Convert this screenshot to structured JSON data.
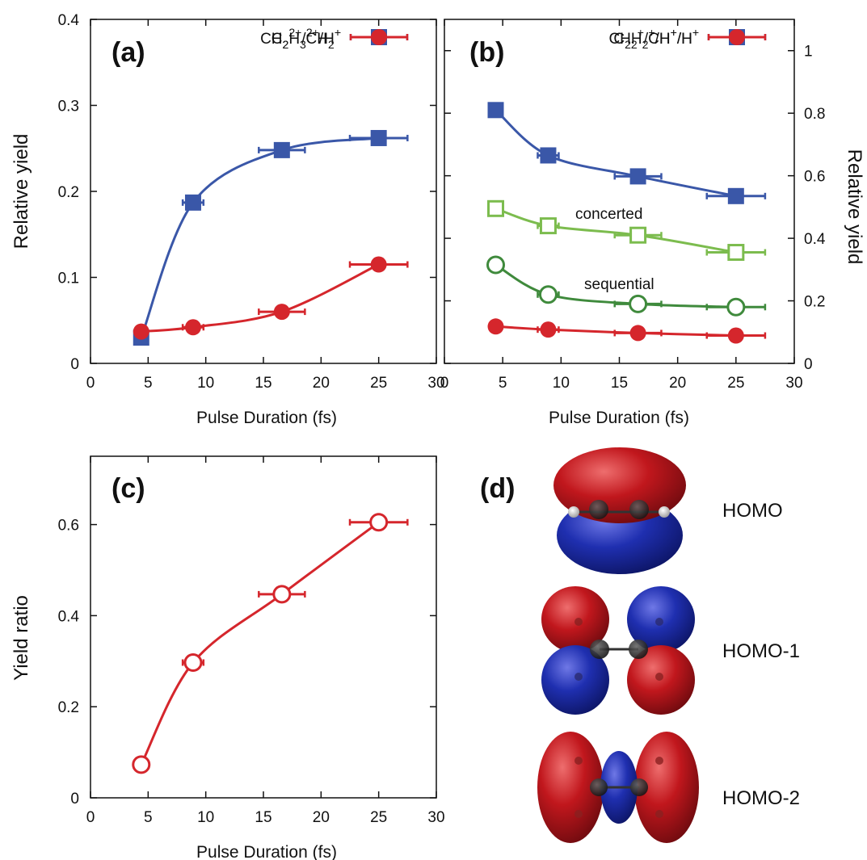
{
  "colors": {
    "blue": "#3a57a8",
    "red": "#d5262c",
    "light_green": "#7cbc4e",
    "dark_green": "#3f8a3c",
    "orbital_red": "#b3161c",
    "orbital_blue": "#1f2ea8"
  },
  "chart_data": [
    {
      "type": "line",
      "panel_label": "(a)",
      "xlabel": "Pulse Duration (fs)",
      "ylabel": "Relative yield",
      "xlim": [
        0,
        30
      ],
      "ylim": [
        0,
        0.4
      ],
      "x_ticks": [
        "0",
        "5",
        "10",
        "15",
        "20",
        "25",
        "30"
      ],
      "y_ticks": [
        "0",
        "0.1",
        "0.2",
        "0.3",
        "0.4"
      ],
      "legend_position": "top-right",
      "series": [
        {
          "name": "C2H3 2+/H+",
          "legend": {
            "a": "C",
            "a_sub": "2",
            "b": "H",
            "b_sub": "3",
            "b_sup": "2+",
            "c": "/H",
            "c_sup": "+"
          },
          "marker": "filled-square",
          "color": "#3a57a8",
          "x": [
            4.4,
            8.9,
            16.6,
            25.0
          ],
          "y": [
            0.03,
            0.187,
            0.248,
            0.262
          ],
          "xerr": [
            0.3,
            0.9,
            2.0,
            2.5
          ]
        },
        {
          "name": "CH2 2+/CH2 +",
          "legend": {
            "a": "CH",
            "a_sub": "2",
            "a_sup": "2+",
            "b": "/CH",
            "b_sub": "2",
            "b_sup": "+"
          },
          "marker": "filled-circle",
          "color": "#d5262c",
          "x": [
            4.4,
            8.9,
            16.6,
            25.0
          ],
          "y": [
            0.037,
            0.042,
            0.06,
            0.115
          ],
          "xerr": [
            0.3,
            0.9,
            2.0,
            2.5
          ]
        }
      ]
    },
    {
      "type": "line",
      "panel_label": "(b)",
      "xlabel": "Pulse Duration (fs)",
      "ylabel": "Relative yield",
      "xlim": [
        0,
        30
      ],
      "ylim": [
        0,
        1.1
      ],
      "x_ticks": [
        "0",
        "5",
        "10",
        "15",
        "20",
        "25",
        "30"
      ],
      "y_ticks": [
        "0",
        "0.2",
        "0.4",
        "0.6",
        "0.8",
        "1"
      ],
      "y_axis_side": "right",
      "legend_position": "top-right",
      "series": [
        {
          "name": "C2H2+/H+/H+",
          "legend": {
            "a": "C",
            "a_sub": "2",
            "b": "H",
            "b_sub": "2",
            "b_sup": "+",
            "c": "/H",
            "c_sup": "+",
            "d": "/H",
            "d_sup": "+"
          },
          "marker": "filled-square",
          "color": "#3a57a8",
          "x": [
            4.4,
            8.9,
            16.6,
            25.0
          ],
          "y": [
            0.81,
            0.665,
            0.598,
            0.535
          ],
          "xerr": [
            0.3,
            0.9,
            2.0,
            2.5
          ]
        },
        {
          "name": "concerted",
          "label": "concerted",
          "marker": "open-square",
          "color": "#7cbc4e",
          "x": [
            4.4,
            8.9,
            16.6,
            25.0
          ],
          "y": [
            0.495,
            0.44,
            0.41,
            0.355
          ],
          "xerr": [
            0.3,
            0.9,
            2.0,
            2.5
          ]
        },
        {
          "name": "sequential",
          "label": "sequential",
          "marker": "open-circle",
          "color": "#3f8a3c",
          "x": [
            4.4,
            8.9,
            16.6,
            25.0
          ],
          "y": [
            0.315,
            0.22,
            0.19,
            0.18
          ],
          "xerr": [
            0.3,
            0.9,
            2.0,
            2.5
          ]
        },
        {
          "name": "CH2+/CH+/H+",
          "legend": {
            "a": "CH",
            "a_sub": "2",
            "a_sup": "+",
            "b": "/CH",
            "b_sup": "+",
            "c": "/H",
            "c_sup": "+"
          },
          "marker": "filled-circle",
          "color": "#d5262c",
          "x": [
            4.4,
            8.9,
            16.6,
            25.0
          ],
          "y": [
            0.118,
            0.108,
            0.097,
            0.089
          ],
          "xerr": [
            0.3,
            0.9,
            2.0,
            2.5
          ]
        }
      ]
    },
    {
      "type": "line",
      "panel_label": "(c)",
      "xlabel": "Pulse Duration (fs)",
      "ylabel": "Yield ratio",
      "xlim": [
        0,
        30
      ],
      "ylim": [
        0,
        0.75
      ],
      "x_ticks": [
        "0",
        "5",
        "10",
        "15",
        "20",
        "25",
        "30"
      ],
      "y_ticks": [
        "0",
        "0.2",
        "0.4",
        "0.6"
      ],
      "series": [
        {
          "marker": "open-circle",
          "color": "#d5262c",
          "x": [
            4.4,
            8.9,
            16.6,
            25.0
          ],
          "y": [
            0.073,
            0.297,
            0.447,
            0.605
          ],
          "xerr": [
            0.3,
            0.9,
            2.0,
            2.5
          ]
        }
      ]
    }
  ],
  "orbitals": {
    "panel_label": "(d)",
    "items": [
      {
        "label": "HOMO",
        "icon": "homo-orbital-icon"
      },
      {
        "label": "HOMO-1",
        "icon": "homo-1-orbital-icon"
      },
      {
        "label": "HOMO-2",
        "icon": "homo-2-orbital-icon"
      }
    ]
  }
}
